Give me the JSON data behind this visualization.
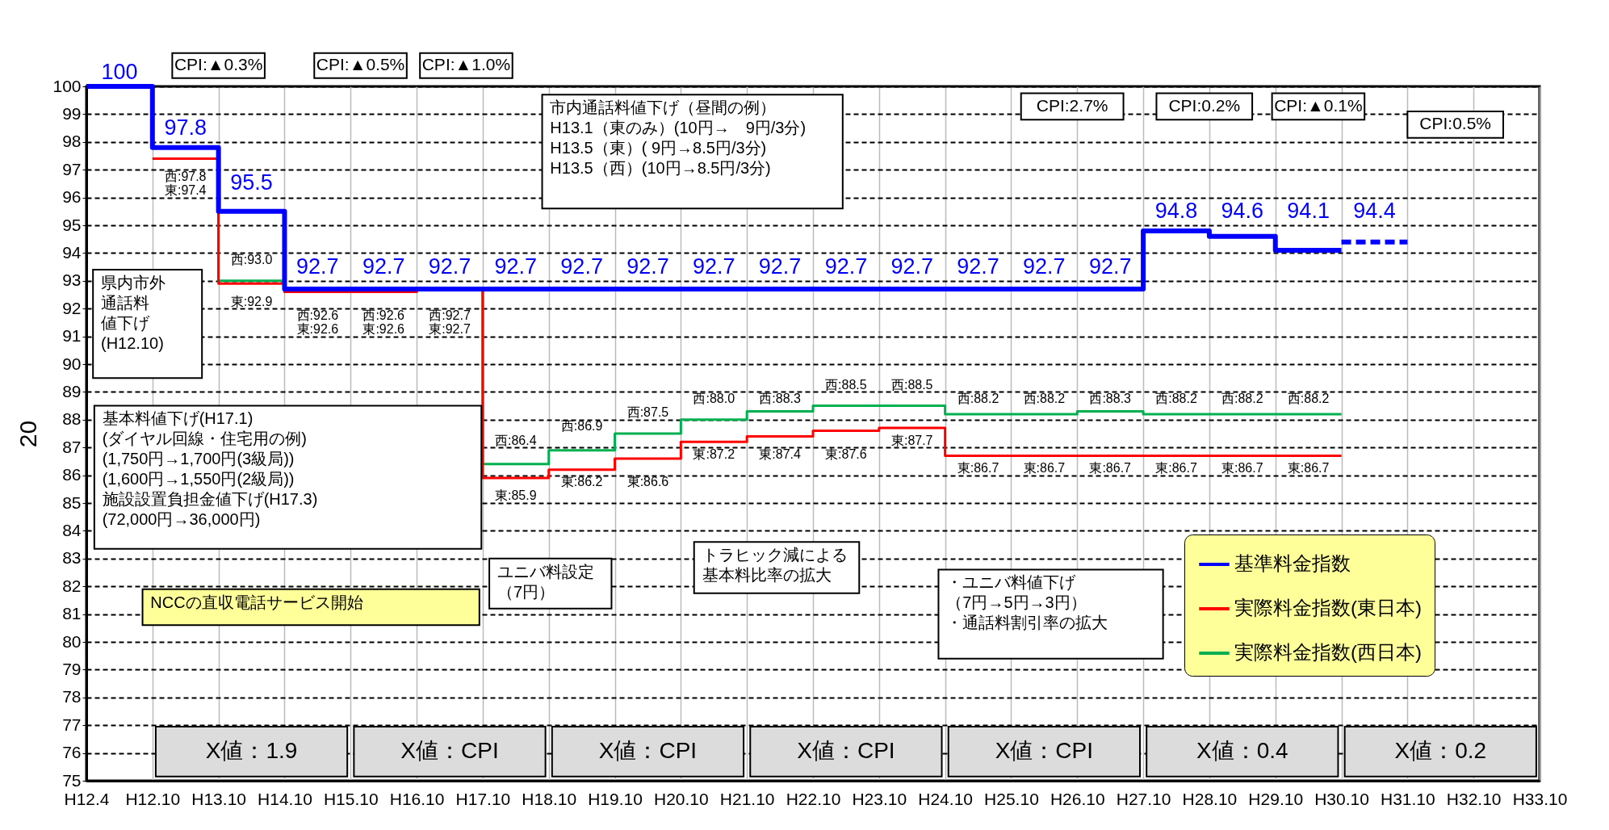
{
  "chart_data": {
    "type": "step",
    "ylabel": "20",
    "categories": [
      "H12.4",
      "H12.10",
      "H13.10",
      "H14.10",
      "H15.10",
      "H16.10",
      "H17.10",
      "H18.10",
      "H19.10",
      "H20.10",
      "H21.10",
      "H22.10",
      "H23.10",
      "H24.10",
      "H25.10",
      "H26.10",
      "H27.10",
      "H28.10",
      "H29.10",
      "H30.10",
      "H31.10",
      "H32.10",
      "H33.10"
    ],
    "ylim": [
      75,
      100
    ],
    "yticks": [
      75,
      76,
      77,
      78,
      79,
      80,
      81,
      82,
      83,
      84,
      85,
      86,
      87,
      88,
      89,
      90,
      91,
      92,
      93,
      94,
      95,
      96,
      97,
      98,
      99,
      100
    ],
    "grid": true,
    "legend": "bottom right",
    "series": [
      {
        "name": "基準料金指数",
        "color": "#0000ff",
        "values": [
          100,
          97.8,
          95.5,
          92.7,
          92.7,
          92.7,
          92.7,
          92.7,
          92.7,
          92.7,
          92.7,
          92.7,
          92.7,
          92.7,
          92.7,
          92.7,
          94.8,
          94.6,
          94.1,
          94.1,
          null,
          null,
          null
        ],
        "value_labels": [
          "100",
          "97.8",
          "95.5",
          "92.7",
          "92.7",
          "92.7",
          "92.7",
          "92.7",
          "92.7",
          "92.7",
          "92.7",
          "92.7",
          "92.7",
          "92.7",
          "92.7",
          "92.7",
          "94.8",
          "94.6",
          "94.1",
          null,
          null,
          null,
          null
        ]
      },
      {
        "name": "実際料金指数(東日本)",
        "color": "#ff0000",
        "values": [
          null,
          97.4,
          92.9,
          92.6,
          92.6,
          92.7,
          85.9,
          86.2,
          86.6,
          87.2,
          87.4,
          87.6,
          87.7,
          86.7,
          86.7,
          86.7,
          86.7,
          86.7,
          86.7,
          86.7,
          null,
          null,
          null
        ],
        "value_labels": [
          null,
          "東:97.4",
          "東:92.9",
          "東:92.6",
          "東:92.6",
          "東:92.7",
          "東:85.9",
          "東:86.2",
          "東:86.6",
          "東:87.2",
          "東:87.4",
          "東:87.6",
          "東:87.7",
          "東:86.7",
          "東:86.7",
          "東:86.7",
          "東:86.7",
          "東:86.7",
          "東:86.7",
          null,
          null,
          null,
          null
        ]
      },
      {
        "name": "実際料金指数(西日本)",
        "color": "#00b050",
        "values": [
          null,
          97.8,
          93.0,
          92.6,
          92.6,
          92.7,
          86.4,
          86.9,
          87.5,
          88.0,
          88.3,
          88.5,
          88.5,
          88.2,
          88.2,
          88.3,
          88.2,
          88.2,
          88.2,
          88.2,
          null,
          null,
          null
        ],
        "value_labels": [
          null,
          "西:97.8",
          "西:93.0",
          "西:92.6",
          "西:92.6",
          "西:92.7",
          "西:86.4",
          "西:86.9",
          "西:87.5",
          "西:88.0",
          "西:88.3",
          "西:88.5",
          "西:88.5",
          "西:88.2",
          "西:88.2",
          "西:88.3",
          "西:88.2",
          "西:88.2",
          "西:88.2",
          null,
          null,
          null,
          null
        ]
      },
      {
        "color": "#0000ff",
        "line_style": "dashed",
        "values": [
          null,
          null,
          null,
          null,
          null,
          null,
          null,
          null,
          null,
          null,
          null,
          null,
          null,
          null,
          null,
          null,
          null,
          null,
          null,
          94.4,
          94.4,
          null,
          null
        ],
        "value_labels": [
          null,
          null,
          null,
          null,
          null,
          null,
          null,
          null,
          null,
          null,
          null,
          null,
          null,
          null,
          null,
          null,
          null,
          null,
          null,
          "94.4",
          null,
          null,
          null
        ]
      }
    ],
    "annotations": [
      "CPI:▲0.3%",
      "CPI:▲0.5%",
      "CPI:▲1.0%",
      "市内通話料値下げ（昼間の例）\nH13.1（東のみ）(10円→　9円/3分)\nH13.5（東）( 9円→8.5円/3分)\nH13.5（西）(10円→8.5円/3分)",
      "CPI:2.7%",
      "CPI:0.2%",
      "CPI:▲0.1%",
      "CPI:0.5%",
      "県内市外通話料値下げ(H12.10)",
      "基本料値下げ(H17.1)\n(ダイヤル回線・住宅用の例)\n　(1,750円→1,700円(3級局))\n　(1,600円→1,550円(2級局))\n施設設置負担金値下げ(H17.3)\n　(72,000円→36,000円)",
      "ユニバ料設定（7円）",
      "トラヒック減による基本料比率の拡大",
      "・ユニバ料値下げ（7円→5円→3円）・通話料割引率の拡大",
      "NCCの直収電話サービス開始",
      "X値：1.9",
      "X値：CPI",
      "X値：CPI",
      "X値：CPI",
      "X値：CPI",
      "X値：0.4",
      "X値：0.2"
    ]
  }
}
